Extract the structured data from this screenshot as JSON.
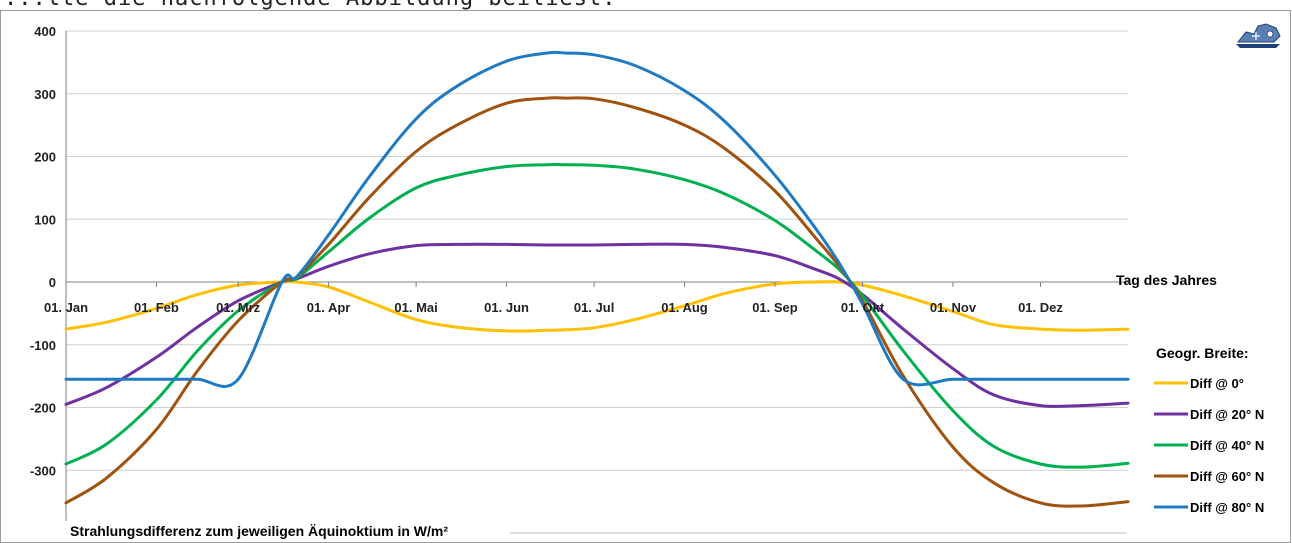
{
  "caption": "...lte die nachfolgende Abbildung beiliest:",
  "chart_data": {
    "type": "line",
    "x_label": "Tag des Jahres",
    "y_label": "Strahlungsdifferenz zum jeweiligen Äquinoktium in W/m²",
    "ylim": [
      -400,
      400
    ],
    "y_ticks": [
      "400",
      "300",
      "200",
      "100",
      "0",
      "-100",
      "-200",
      "-300"
    ],
    "y_tick_values": [
      400,
      300,
      200,
      100,
      0,
      -100,
      -200,
      -300
    ],
    "xlim": [
      1,
      365
    ],
    "x_ticks": [
      "01. Jan",
      "01. Feb",
      "01. Mrz",
      "01. Apr",
      "01. Mai",
      "01. Jun",
      "01. Jul",
      "01. Aug",
      "01. Sep",
      "01. Okt",
      "01. Nov",
      "01. Dez"
    ],
    "x_tick_days": [
      1,
      32,
      60,
      91,
      121,
      152,
      182,
      213,
      244,
      274,
      305,
      335
    ],
    "grid": "horizontal",
    "legend": {
      "title": "Geogr. Breite:",
      "position": "right"
    },
    "x_samples": [
      1,
      15,
      32,
      46,
      60,
      75,
      80,
      91,
      105,
      121,
      135,
      152,
      166,
      172,
      182,
      196,
      213,
      227,
      244,
      258,
      266,
      274,
      288,
      305,
      319,
      335,
      349,
      365
    ],
    "series": [
      {
        "name": "Diff @ 0°",
        "color": "#FFC000",
        "values": [
          -75,
          -64,
          -42,
          -20,
          -5,
          0,
          0,
          -8,
          -32,
          -60,
          -72,
          -78,
          -77,
          -76,
          -73,
          -60,
          -38,
          -18,
          -3,
          0,
          0,
          -5,
          -22,
          -47,
          -68,
          -75,
          -77,
          -75
        ]
      },
      {
        "name": "Diff @ 20° N",
        "color": "#7030A0",
        "values": [
          -195,
          -168,
          -120,
          -72,
          -30,
          0,
          5,
          25,
          45,
          58,
          60,
          60,
          59,
          59,
          59,
          60,
          60,
          55,
          42,
          20,
          5,
          -20,
          -75,
          -138,
          -180,
          -197,
          -197,
          -193
        ]
      },
      {
        "name": "Diff @ 40° N",
        "color": "#00B050",
        "values": [
          -290,
          -258,
          -188,
          -110,
          -46,
          0,
          6,
          48,
          102,
          150,
          170,
          184,
          187,
          187,
          186,
          180,
          163,
          140,
          98,
          50,
          20,
          -22,
          -110,
          -205,
          -262,
          -290,
          -295,
          -289
        ]
      },
      {
        "name": "Diff @ 60° N",
        "color": "#A0520F",
        "values": [
          -352,
          -312,
          -235,
          -142,
          -62,
          0,
          8,
          60,
          135,
          208,
          250,
          285,
          293,
          293,
          292,
          278,
          250,
          212,
          145,
          70,
          25,
          -30,
          -150,
          -263,
          -320,
          -352,
          -357,
          -350
        ]
      },
      {
        "name": "Diff @ 80° N",
        "color": "#1F7AC2",
        "values": [
          -155,
          -155,
          -155,
          -155,
          -155,
          0,
          8,
          75,
          168,
          260,
          312,
          352,
          365,
          365,
          362,
          345,
          305,
          255,
          170,
          85,
          30,
          -35,
          -155,
          -155,
          -155,
          -155,
          -155,
          -155
        ]
      }
    ]
  }
}
